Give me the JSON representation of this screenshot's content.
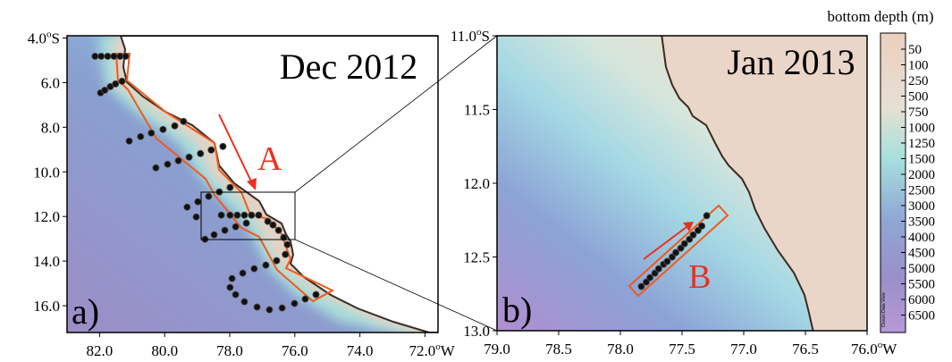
{
  "panel_a": {
    "title": "Dec 2012",
    "label": "a)",
    "region_label": "A",
    "xlim": [
      83.0,
      71.6
    ],
    "ylim": [
      3.9,
      17.2
    ],
    "lat_ticks": [
      "4.0",
      "6.0",
      "8.0",
      "10.0",
      "12.0",
      "14.0",
      "16.0"
    ],
    "lon_ticks": [
      "82.0",
      "80.0",
      "78.0",
      "76.0",
      "74.0",
      "72.0"
    ],
    "stations": [
      [
        82.14,
        4.82
      ],
      [
        81.95,
        4.82
      ],
      [
        81.75,
        4.82
      ],
      [
        81.56,
        4.82
      ],
      [
        81.37,
        4.82
      ],
      [
        81.2,
        4.82
      ],
      [
        81.97,
        6.46
      ],
      [
        81.84,
        6.34
      ],
      [
        81.67,
        6.18
      ],
      [
        81.51,
        6.06
      ],
      [
        81.31,
        5.94
      ],
      [
        81.09,
        8.62
      ],
      [
        80.74,
        8.42
      ],
      [
        80.41,
        8.26
      ],
      [
        80.05,
        8.1
      ],
      [
        79.69,
        7.94
      ],
      [
        79.42,
        7.74
      ],
      [
        80.27,
        9.82
      ],
      [
        79.91,
        9.66
      ],
      [
        79.58,
        9.5
      ],
      [
        79.25,
        9.34
      ],
      [
        78.9,
        9.18
      ],
      [
        78.57,
        9.02
      ],
      [
        78.21,
        8.86
      ],
      [
        79.31,
        11.58
      ],
      [
        78.98,
        11.34
      ],
      [
        78.65,
        11.1
      ],
      [
        78.32,
        10.9
      ],
      [
        77.99,
        10.7
      ],
      [
        79.03,
        12.02
      ],
      [
        78.26,
        11.94
      ],
      [
        77.99,
        11.94
      ],
      [
        77.77,
        11.94
      ],
      [
        77.55,
        11.94
      ],
      [
        77.33,
        11.94
      ],
      [
        77.11,
        11.94
      ],
      [
        78.76,
        13.02
      ],
      [
        78.48,
        12.82
      ],
      [
        78.15,
        12.62
      ],
      [
        77.82,
        12.46
      ],
      [
        77.49,
        12.3
      ],
      [
        76.83,
        12.22
      ],
      [
        76.67,
        12.38
      ],
      [
        76.5,
        12.62
      ],
      [
        76.34,
        12.94
      ],
      [
        76.23,
        13.26
      ],
      [
        77.93,
        14.78
      ],
      [
        77.6,
        14.54
      ],
      [
        77.25,
        14.34
      ],
      [
        76.89,
        14.18
      ],
      [
        76.56,
        13.98
      ],
      [
        76.29,
        13.7
      ],
      [
        77.99,
        15.18
      ],
      [
        77.82,
        15.5
      ],
      [
        77.55,
        15.82
      ],
      [
        77.16,
        16.06
      ],
      [
        76.78,
        16.18
      ],
      [
        76.39,
        16.1
      ],
      [
        76.01,
        15.9
      ],
      [
        75.68,
        15.7
      ],
      [
        75.35,
        15.5
      ]
    ]
  },
  "panel_b": {
    "title": "Jan 2013",
    "label": "b)",
    "region_label": "B",
    "xlim": [
      79.0,
      76.0
    ],
    "ylim": [
      11.0,
      13.0
    ],
    "lat_ticks": [
      "11.0",
      "11.5",
      "12.0",
      "12.5",
      "13.0"
    ],
    "lon_ticks": [
      "79.0",
      "78.5",
      "78.0",
      "77.5",
      "77.0",
      "76.5",
      "76.0"
    ],
    "stations": [
      [
        77.83,
        12.7
      ],
      [
        77.79,
        12.67
      ],
      [
        77.76,
        12.64
      ],
      [
        77.72,
        12.61
      ],
      [
        77.69,
        12.58
      ],
      [
        77.65,
        12.55
      ],
      [
        77.62,
        12.53
      ],
      [
        77.58,
        12.5
      ],
      [
        77.55,
        12.47
      ],
      [
        77.51,
        12.44
      ],
      [
        77.48,
        12.41
      ],
      [
        77.44,
        12.38
      ],
      [
        77.41,
        12.35
      ],
      [
        77.37,
        12.32
      ],
      [
        77.34,
        12.29
      ],
      [
        77.3,
        12.22
      ]
    ]
  },
  "units": {
    "degree": "o",
    "lat": "S",
    "lon": "W"
  },
  "colorbar": {
    "title": "bottom depth (m)",
    "labels": [
      "50",
      "100",
      "250",
      "500",
      "750",
      "1000",
      "1250",
      "1500",
      "2000",
      "2500",
      "3000",
      "3500",
      "4000",
      "4500",
      "5000",
      "5500",
      "6000",
      "6500"
    ],
    "credit": "Ocean Data View"
  }
}
